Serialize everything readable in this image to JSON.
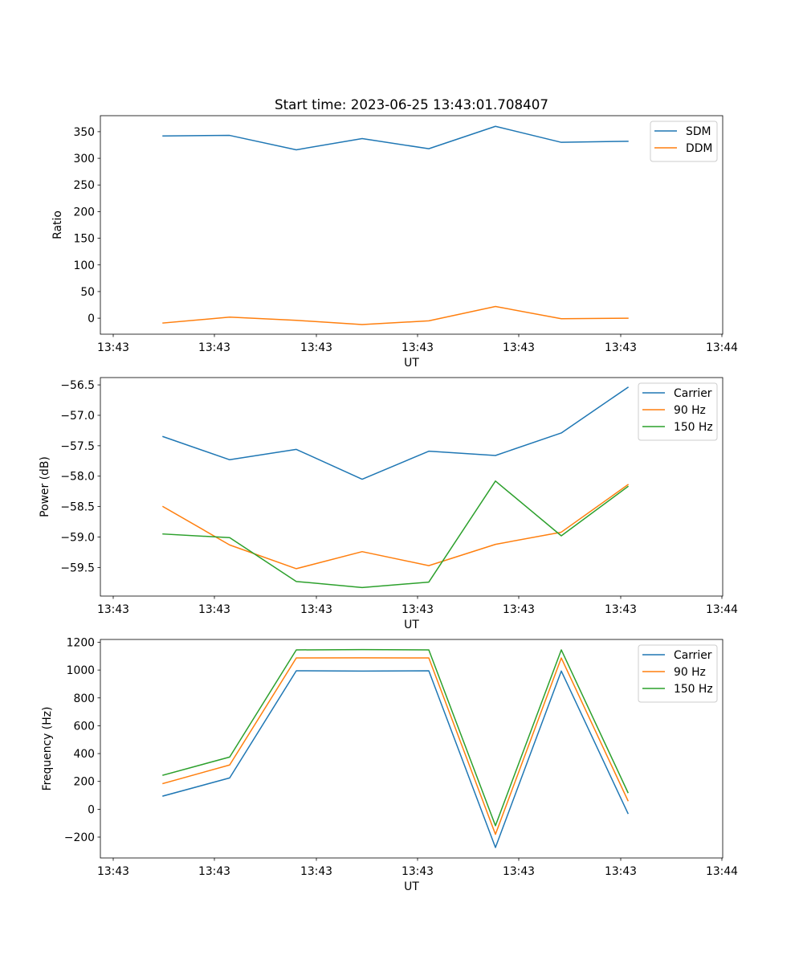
{
  "title": "Start time: 2023-06-25 13:43:01.708407",
  "chart_data": [
    {
      "type": "line",
      "xlabel": "UT",
      "ylabel": "Ratio",
      "x_tick_labels": [
        "13:43",
        "13:43",
        "13:43",
        "13:43",
        "13:43",
        "13:43",
        "13:44"
      ],
      "ylim": [
        -30,
        380
      ],
      "yticks": [
        0,
        50,
        100,
        150,
        200,
        250,
        300,
        350
      ],
      "ytick_labels": [
        "0",
        "50",
        "100",
        "150",
        "200",
        "250",
        "300",
        "350"
      ],
      "legend_position": "top-right",
      "series": [
        {
          "name": "SDM",
          "color": "#1f77b4",
          "values": [
            342,
            343,
            316,
            337,
            318,
            360,
            330,
            332
          ]
        },
        {
          "name": "DDM",
          "color": "#ff7f0e",
          "values": [
            -9,
            2,
            -4,
            -12,
            -5,
            22,
            -1,
            0
          ]
        }
      ]
    },
    {
      "type": "line",
      "xlabel": "UT",
      "ylabel": "Power (dB)",
      "x_tick_labels": [
        "13:43",
        "13:43",
        "13:43",
        "13:43",
        "13:43",
        "13:43",
        "13:44"
      ],
      "ylim": [
        -59.97,
        -56.38
      ],
      "yticks": [
        -59.5,
        -59.0,
        -58.5,
        -58.0,
        -57.5,
        -57.0,
        -56.5
      ],
      "ytick_labels": [
        "−59.5",
        "−59.0",
        "−58.5",
        "−58.0",
        "−57.5",
        "−57.0",
        "−56.5"
      ],
      "legend_position": "top-right",
      "series": [
        {
          "name": "Carrier",
          "color": "#1f77b4",
          "values": [
            -57.35,
            -57.73,
            -57.56,
            -58.05,
            -57.59,
            -57.66,
            -57.29,
            -56.54
          ]
        },
        {
          "name": "90 Hz",
          "color": "#ff7f0e",
          "values": [
            -58.5,
            -59.13,
            -59.52,
            -59.24,
            -59.47,
            -59.12,
            -58.92,
            -58.14
          ]
        },
        {
          "name": "150 Hz",
          "color": "#2ca02c",
          "values": [
            -58.95,
            -59.01,
            -59.73,
            -59.83,
            -59.74,
            -58.08,
            -58.98,
            -58.17
          ]
        }
      ]
    },
    {
      "type": "line",
      "xlabel": "UT",
      "ylabel": "Frequency (Hz)",
      "x_tick_labels": [
        "13:43",
        "13:43",
        "13:43",
        "13:43",
        "13:43",
        "13:43",
        "13:44"
      ],
      "ylim": [
        -350,
        1220
      ],
      "yticks": [
        -200,
        0,
        200,
        400,
        600,
        800,
        1000,
        1200
      ],
      "ytick_labels": [
        "−200",
        "0",
        "200",
        "400",
        "600",
        "800",
        "1000",
        "1200"
      ],
      "legend_position": "top-right",
      "series": [
        {
          "name": "Carrier",
          "color": "#1f77b4",
          "values": [
            95,
            225,
            995,
            993,
            995,
            -275,
            993,
            -30
          ]
        },
        {
          "name": "90 Hz",
          "color": "#ff7f0e",
          "values": [
            185,
            318,
            1087,
            1088,
            1087,
            -180,
            1087,
            62
          ]
        },
        {
          "name": "150 Hz",
          "color": "#2ca02c",
          "values": [
            245,
            375,
            1145,
            1147,
            1145,
            -118,
            1145,
            120
          ]
        }
      ]
    }
  ]
}
